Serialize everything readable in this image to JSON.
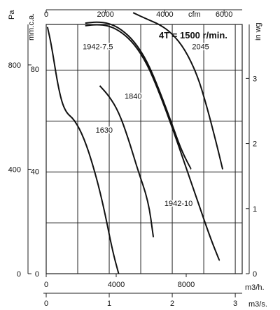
{
  "chart_data": {
    "type": "line",
    "title": "4T = 1500 r/min.",
    "x_axes": {
      "cfm": {
        "label": "cfm",
        "ticks": [
          0,
          2000,
          4000,
          6000
        ],
        "range": [
          0,
          6611
        ]
      },
      "m3h": {
        "label": "m3/h.",
        "ticks": [
          0,
          4000,
          8000
        ],
        "range": [
          0,
          11200
        ]
      },
      "m3s": {
        "label": "m3/s.",
        "ticks": [
          0,
          1,
          2,
          3
        ],
        "range": [
          0,
          3.11
        ]
      }
    },
    "y_axes": {
      "pa": {
        "label": "Pa",
        "ticks": [
          0,
          400,
          800
        ],
        "range": [
          0,
          955
        ]
      },
      "mmca": {
        "label": "mm.c.a.",
        "ticks": [
          0,
          40,
          80
        ],
        "range": [
          0,
          97.4
        ]
      },
      "inwg": {
        "label": "in wg",
        "ticks": [
          0,
          1,
          2,
          3
        ],
        "range": [
          0,
          3.83
        ]
      }
    },
    "grid": true,
    "series": [
      {
        "name": "1630",
        "label_at": [
          0.92,
          540
        ],
        "points": [
          [
            0.02,
            945
          ],
          [
            0.08,
            880
          ],
          [
            0.2,
            700
          ],
          [
            0.3,
            620
          ],
          [
            0.45,
            590
          ],
          [
            0.6,
            520
          ],
          [
            0.75,
            410
          ],
          [
            0.9,
            270
          ],
          [
            1.05,
            90
          ],
          [
            1.15,
            0
          ]
        ]
      },
      {
        "name": "1840",
        "label_at": [
          1.38,
          670
        ],
        "points": [
          [
            0.85,
            720
          ],
          [
            1.0,
            680
          ],
          [
            1.15,
            620
          ],
          [
            1.3,
            520
          ],
          [
            1.45,
            400
          ],
          [
            1.62,
            280
          ],
          [
            1.7,
            140
          ]
        ]
      },
      {
        "name": "1942-7.5",
        "label_at": [
          0.82,
          860
        ],
        "points": [
          [
            0.62,
            960
          ],
          [
            0.8,
            965
          ],
          [
            1.0,
            960
          ],
          [
            1.2,
            935
          ],
          [
            1.4,
            890
          ],
          [
            1.6,
            815
          ],
          [
            1.8,
            700
          ],
          [
            2.0,
            570
          ],
          [
            2.15,
            470
          ],
          [
            2.3,
            400
          ]
        ]
      },
      {
        "name": "1942-10",
        "label_at": [
          2.1,
          260
        ],
        "points": [
          [
            0.62,
            950
          ],
          [
            0.8,
            955
          ],
          [
            1.0,
            950
          ],
          [
            1.2,
            925
          ],
          [
            1.4,
            880
          ],
          [
            1.6,
            805
          ],
          [
            1.8,
            690
          ],
          [
            2.0,
            560
          ],
          [
            2.2,
            420
          ],
          [
            2.4,
            280
          ],
          [
            2.6,
            140
          ],
          [
            2.75,
            50
          ]
        ]
      },
      {
        "name": "2045",
        "label_at": [
          2.45,
          860
        ],
        "points": [
          [
            1.38,
            1000
          ],
          [
            1.6,
            975
          ],
          [
            1.8,
            955
          ],
          [
            2.0,
            920
          ],
          [
            2.2,
            860
          ],
          [
            2.4,
            760
          ],
          [
            2.55,
            640
          ],
          [
            2.7,
            500
          ],
          [
            2.8,
            400
          ]
        ]
      }
    ]
  }
}
